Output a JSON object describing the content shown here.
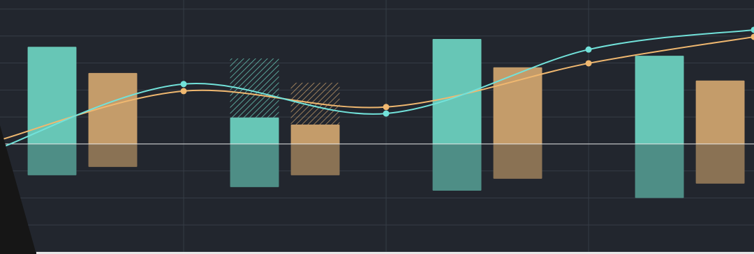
{
  "chart_data": {
    "type": "bar",
    "xlim": [
      0.093,
      3.817
    ],
    "xticks": [
      1,
      2,
      3
    ],
    "ylim": [
      -4,
      5
    ],
    "yticks": [
      -4,
      -3,
      -2,
      -1,
      0,
      1,
      2,
      3,
      4,
      5
    ],
    "grid": true,
    "bar_width": 0.241,
    "series": [
      {
        "type": "bar",
        "color": "#67c6b6",
        "x": [
          0.35,
          1.35,
          2.35,
          3.35
        ],
        "values": [
          3.6,
          0.98,
          3.89,
          3.27
        ]
      },
      {
        "type": "bar",
        "color": "#67c6b6",
        "hatched": true,
        "stack": 0,
        "x": [
          0.35,
          1.35,
          2.35,
          3.35
        ],
        "values": [
          null,
          2.19,
          null,
          null
        ]
      },
      {
        "type": "bar",
        "color": "#4e8e86",
        "x": [
          0.35,
          1.35,
          2.35,
          3.35
        ],
        "values": [
          -1.16,
          -1.6,
          -1.73,
          -2.0
        ]
      },
      {
        "type": "bar",
        "color": "#c49c6a",
        "x": [
          0.65,
          1.65,
          2.65,
          3.65
        ],
        "values": [
          2.63,
          0.72,
          2.84,
          2.35
        ]
      },
      {
        "type": "bar",
        "color": "#c49c6a",
        "hatched": true,
        "stack": 3,
        "x": [
          0.65,
          1.65,
          2.65,
          3.65
        ],
        "values": [
          null,
          1.55,
          null,
          null
        ]
      },
      {
        "type": "bar",
        "color": "#8a7254",
        "x": [
          0.65,
          1.65,
          2.65,
          3.65
        ],
        "values": [
          -0.85,
          -1.16,
          -1.29,
          -1.47
        ]
      },
      {
        "type": "line",
        "color": "#f0b870",
        "x": [
          0.093,
          1,
          2,
          3,
          3.817
        ],
        "values": [
          0.15,
          1.96,
          1.37,
          2.99,
          3.97
        ]
      },
      {
        "type": "line",
        "color": "#72e2da",
        "x": [
          0.093,
          1,
          2,
          3,
          3.817
        ],
        "values": [
          -0.15,
          2.22,
          1.13,
          3.5,
          4.23
        ]
      }
    ]
  }
}
